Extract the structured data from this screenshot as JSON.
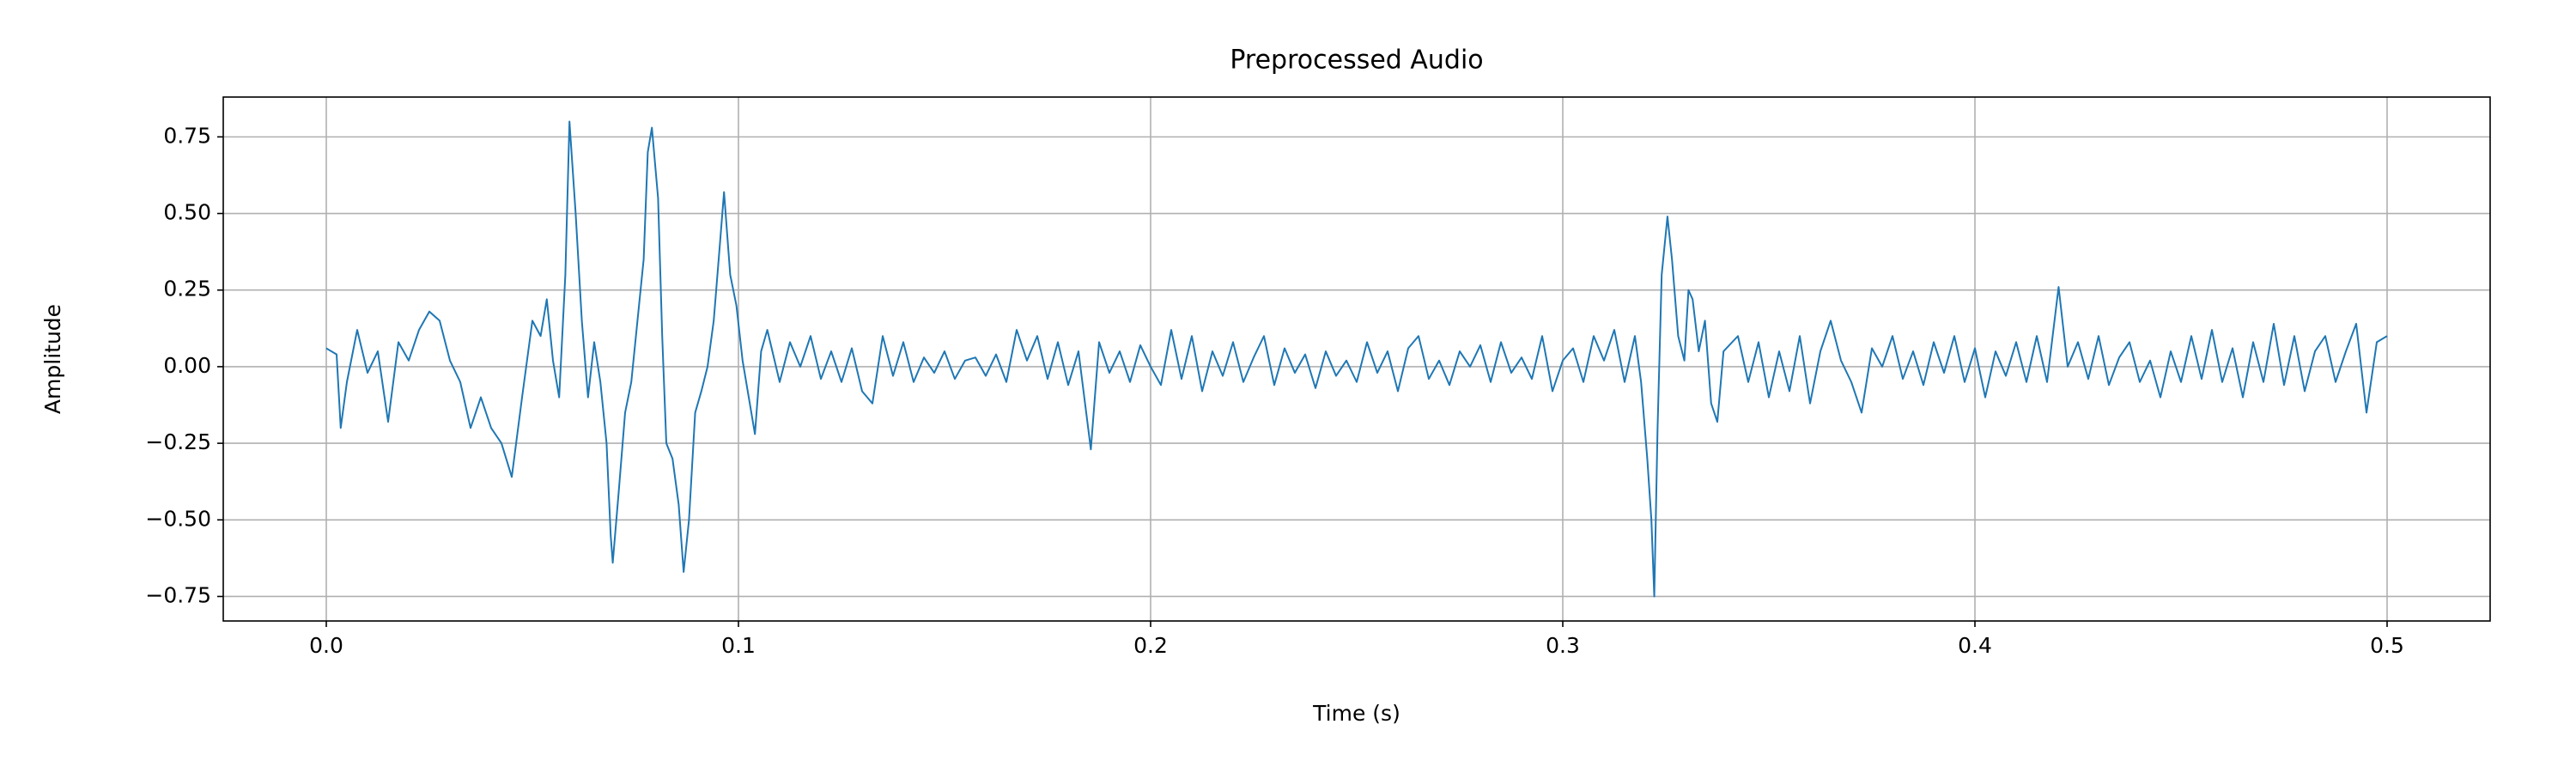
{
  "chart_data": {
    "type": "line",
    "title": "Preprocessed Audio",
    "x_label": "Time (s)",
    "y_label": "Amplitude",
    "grid": true,
    "xlim": [
      -0.025,
      0.525
    ],
    "ylim": [
      -0.83,
      0.88
    ],
    "xticks": [
      {
        "value": 0,
        "label": "0.0"
      },
      0.1,
      0.2,
      0.3,
      0.4,
      0.5
    ],
    "yticks": [
      {
        "value": -0.75,
        "label": "−0.75"
      },
      {
        "value": -0.5,
        "label": "−0.50"
      },
      {
        "value": -0.25,
        "label": "−0.25"
      },
      {
        "value": 0,
        "label": "0.00"
      },
      {
        "value": 0.25,
        "label": "0.25"
      },
      {
        "value": 0.5,
        "label": "0.50"
      },
      {
        "value": 0.75,
        "label": "0.75"
      }
    ],
    "x": [
      0,
      0.0025,
      0.0035,
      0.005,
      0.0075,
      0.01,
      0.0125,
      0.015,
      0.0175,
      0.02,
      0.0225,
      0.025,
      0.0275,
      0.03,
      0.0325,
      0.035,
      0.0375,
      0.04,
      0.0425,
      0.045,
      0.0475,
      0.05,
      0.052,
      0.0535,
      0.055,
      0.0565,
      0.058,
      0.059,
      0.0605,
      0.062,
      0.0635,
      0.065,
      0.0665,
      0.068,
      0.069,
      0.0695,
      0.071,
      0.0725,
      0.074,
      0.0755,
      0.077,
      0.078,
      0.079,
      0.0805,
      0.0815,
      0.0825,
      0.084,
      0.0855,
      0.0867,
      0.088,
      0.0895,
      0.091,
      0.0925,
      0.094,
      0.0955,
      0.0965,
      0.098,
      0.0995,
      0.101,
      0.1025,
      0.104,
      0.1055,
      0.107,
      0.11,
      0.1125,
      0.115,
      0.1175,
      0.12,
      0.1225,
      0.125,
      0.1275,
      0.13,
      0.1325,
      0.135,
      0.1375,
      0.14,
      0.1425,
      0.145,
      0.1475,
      0.15,
      0.1525,
      0.155,
      0.1575,
      0.16,
      0.1625,
      0.165,
      0.1675,
      0.17,
      0.1725,
      0.175,
      0.1775,
      0.18,
      0.1825,
      0.1855,
      0.1875,
      0.19,
      0.1925,
      0.195,
      0.1975,
      0.2,
      0.2025,
      0.205,
      0.2075,
      0.21,
      0.2125,
      0.215,
      0.2175,
      0.22,
      0.2225,
      0.225,
      0.2275,
      0.23,
      0.2325,
      0.235,
      0.2375,
      0.24,
      0.2425,
      0.245,
      0.2475,
      0.25,
      0.2525,
      0.255,
      0.2575,
      0.26,
      0.2625,
      0.265,
      0.2675,
      0.27,
      0.2725,
      0.275,
      0.2775,
      0.28,
      0.2825,
      0.285,
      0.2875,
      0.29,
      0.2925,
      0.295,
      0.2975,
      0.3,
      0.3025,
      0.305,
      0.3075,
      0.31,
      0.3125,
      0.315,
      0.3175,
      0.319,
      0.3205,
      0.3215,
      0.3222,
      0.323,
      0.324,
      0.3254,
      0.3265,
      0.328,
      0.3295,
      0.3305,
      0.3315,
      0.333,
      0.3345,
      0.336,
      0.3375,
      0.339,
      0.3425,
      0.345,
      0.3475,
      0.35,
      0.3525,
      0.355,
      0.3575,
      0.36,
      0.3625,
      0.365,
      0.3675,
      0.37,
      0.3725,
      0.375,
      0.3775,
      0.38,
      0.3825,
      0.385,
      0.3875,
      0.39,
      0.3925,
      0.395,
      0.3975,
      0.4,
      0.4025,
      0.405,
      0.4075,
      0.41,
      0.4125,
      0.415,
      0.4175,
      0.4203,
      0.4225,
      0.425,
      0.4275,
      0.43,
      0.4325,
      0.435,
      0.4375,
      0.44,
      0.4425,
      0.445,
      0.4475,
      0.45,
      0.4525,
      0.455,
      0.4575,
      0.46,
      0.4625,
      0.465,
      0.4675,
      0.47,
      0.4725,
      0.475,
      0.4775,
      0.48,
      0.4825,
      0.485,
      0.4875,
      0.49,
      0.4925,
      0.495,
      0.4975,
      0.5
    ],
    "series": [
      {
        "color": "#1f77b4",
        "values": [
          0.06,
          0.04,
          -0.2,
          -0.05,
          0.12,
          -0.02,
          0.05,
          -0.18,
          0.08,
          0.02,
          0.12,
          0.18,
          0.15,
          0.02,
          -0.05,
          -0.2,
          -0.1,
          -0.2,
          -0.25,
          -0.36,
          -0.1,
          0.15,
          0.1,
          0.22,
          0.02,
          -0.1,
          0.3,
          0.8,
          0.5,
          0.15,
          -0.1,
          0.08,
          -0.05,
          -0.25,
          -0.55,
          -0.64,
          -0.4,
          -0.15,
          -0.05,
          0.15,
          0.35,
          0.7,
          0.78,
          0.55,
          0.1,
          -0.25,
          -0.3,
          -0.45,
          -0.67,
          -0.5,
          -0.15,
          -0.08,
          0,
          0.15,
          0.4,
          0.57,
          0.3,
          0.2,
          0.02,
          -0.1,
          -0.22,
          0.05,
          0.12,
          -0.05,
          0.08,
          0,
          0.1,
          -0.04,
          0.05,
          -0.05,
          0.06,
          -0.08,
          -0.12,
          0.1,
          -0.03,
          0.08,
          -0.05,
          0.03,
          -0.02,
          0.05,
          -0.04,
          0.02,
          0.03,
          -0.03,
          0.04,
          -0.05,
          0.12,
          0.02,
          0.1,
          -0.04,
          0.08,
          -0.06,
          0.05,
          -0.27,
          0.08,
          -0.02,
          0.05,
          -0.05,
          0.07,
          0,
          -0.06,
          0.12,
          -0.04,
          0.1,
          -0.08,
          0.05,
          -0.03,
          0.08,
          -0.05,
          0.03,
          0.1,
          -0.06,
          0.06,
          -0.02,
          0.04,
          -0.07,
          0.05,
          -0.03,
          0.02,
          -0.05,
          0.08,
          -0.02,
          0.05,
          -0.08,
          0.06,
          0.1,
          -0.04,
          0.02,
          -0.06,
          0.05,
          0,
          0.07,
          -0.05,
          0.08,
          -0.02,
          0.03,
          -0.04,
          0.1,
          -0.08,
          0.02,
          0.06,
          -0.05,
          0.1,
          0.02,
          0.12,
          -0.05,
          0.1,
          -0.05,
          -0.3,
          -0.5,
          -0.75,
          -0.2,
          0.3,
          0.49,
          0.35,
          0.1,
          0.02,
          0.25,
          0.22,
          0.05,
          0.15,
          -0.12,
          -0.18,
          0.05,
          0.1,
          -0.05,
          0.08,
          -0.1,
          0.05,
          -0.08,
          0.1,
          -0.12,
          0.05,
          0.15,
          0.02,
          -0.05,
          -0.15,
          0.06,
          0,
          0.1,
          -0.04,
          0.05,
          -0.06,
          0.08,
          -0.02,
          0.1,
          -0.05,
          0.06,
          -0.1,
          0.05,
          -0.03,
          0.08,
          -0.05,
          0.1,
          -0.05,
          0.26,
          0,
          0.08,
          -0.04,
          0.1,
          -0.06,
          0.03,
          0.08,
          -0.05,
          0.02,
          -0.1,
          0.05,
          -0.05,
          0.1,
          -0.04,
          0.12,
          -0.05,
          0.06,
          -0.1,
          0.08,
          -0.05,
          0.14,
          -0.06,
          0.1,
          -0.08,
          0.05,
          0.1,
          -0.05,
          0.05,
          0.14,
          -0.15,
          0.08,
          0.1
        ]
      }
    ]
  }
}
